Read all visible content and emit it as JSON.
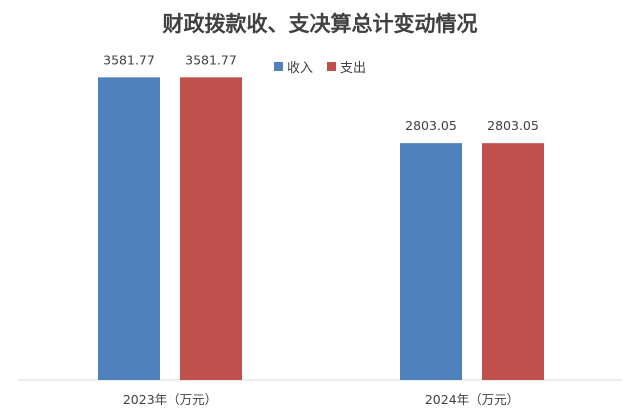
{
  "chart_data": {
    "type": "bar",
    "title": "财政拨款收、支决算总计变动情况",
    "categories": [
      "2023年（万元）",
      "2024年（万元）"
    ],
    "series": [
      {
        "name": "收入",
        "color": "#4F81BD",
        "values": [
          3581.77,
          2803.05
        ]
      },
      {
        "name": "支出",
        "color": "#C0504D",
        "values": [
          3581.77,
          2803.05
        ]
      }
    ],
    "value_labels": [
      [
        "3581.77",
        "2803.05"
      ],
      [
        "3581.77",
        "2803.05"
      ]
    ],
    "ylim": [
      0,
      4000
    ],
    "grid": false,
    "legend_position": "top"
  }
}
